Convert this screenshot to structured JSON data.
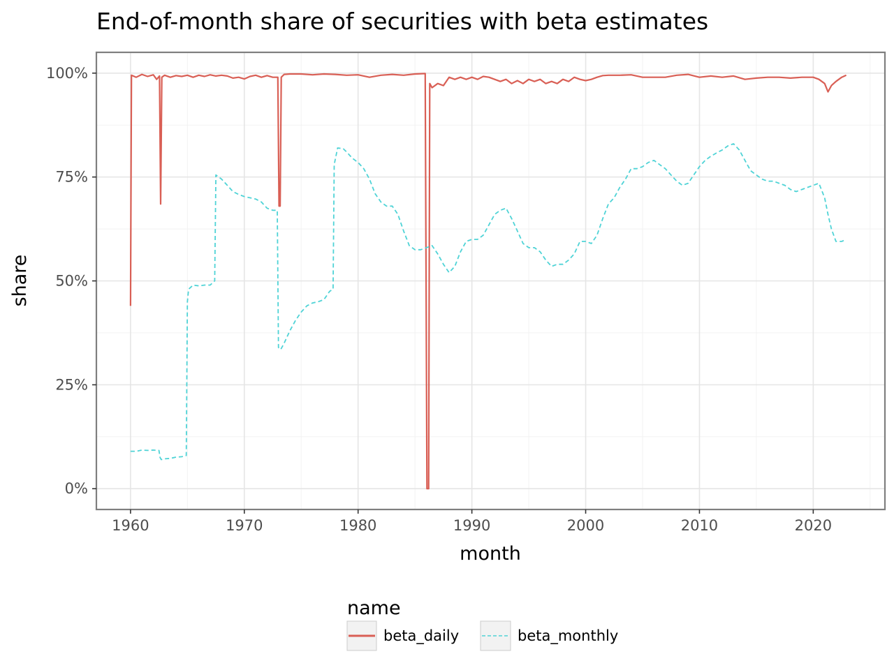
{
  "chart_data": {
    "type": "line",
    "title": "End-of-month share of securities with beta estimates",
    "xlabel": "month",
    "ylabel": "share",
    "xlim": [
      1957.0,
      2026.3
    ],
    "ylim": [
      -0.05,
      1.05
    ],
    "x_ticks": [
      1960,
      1970,
      1980,
      1990,
      2000,
      2010,
      2020
    ],
    "x_tick_labels": [
      "1960",
      "1970",
      "1980",
      "1990",
      "2000",
      "2010",
      "2020"
    ],
    "y_ticks": [
      0,
      0.25,
      0.5,
      0.75,
      1.0
    ],
    "y_tick_labels": [
      "0%",
      "25%",
      "50%",
      "75%",
      "100%"
    ],
    "grid": true,
    "legend": {
      "title": "name",
      "position": "bottom"
    },
    "series": [
      {
        "name": "beta_daily",
        "color": "#d95f55",
        "dash": "solid",
        "points": [
          [
            1960.0,
            0.44
          ],
          [
            1960.08,
            0.995
          ],
          [
            1960.5,
            0.99
          ],
          [
            1961.0,
            0.997
          ],
          [
            1961.5,
            0.992
          ],
          [
            1962.0,
            0.996
          ],
          [
            1962.3,
            0.985
          ],
          [
            1962.55,
            0.993
          ],
          [
            1962.65,
            0.685
          ],
          [
            1962.75,
            0.99
          ],
          [
            1963.0,
            0.995
          ],
          [
            1963.5,
            0.99
          ],
          [
            1964.0,
            0.994
          ],
          [
            1964.5,
            0.992
          ],
          [
            1965.0,
            0.995
          ],
          [
            1965.5,
            0.99
          ],
          [
            1966.0,
            0.995
          ],
          [
            1966.5,
            0.992
          ],
          [
            1967.0,
            0.996
          ],
          [
            1967.5,
            0.993
          ],
          [
            1968.0,
            0.995
          ],
          [
            1968.5,
            0.993
          ],
          [
            1969.0,
            0.988
          ],
          [
            1969.5,
            0.99
          ],
          [
            1970.0,
            0.986
          ],
          [
            1970.5,
            0.992
          ],
          [
            1971.0,
            0.995
          ],
          [
            1971.5,
            0.99
          ],
          [
            1972.0,
            0.994
          ],
          [
            1972.5,
            0.99
          ],
          [
            1972.95,
            0.99
          ],
          [
            1973.05,
            0.68
          ],
          [
            1973.15,
            0.68
          ],
          [
            1973.25,
            0.99
          ],
          [
            1973.5,
            0.997
          ],
          [
            1974.0,
            0.998
          ],
          [
            1975.0,
            0.998
          ],
          [
            1976.0,
            0.996
          ],
          [
            1977.0,
            0.998
          ],
          [
            1978.0,
            0.997
          ],
          [
            1979.0,
            0.995
          ],
          [
            1980.0,
            0.996
          ],
          [
            1981.0,
            0.99
          ],
          [
            1982.0,
            0.995
          ],
          [
            1983.0,
            0.997
          ],
          [
            1984.0,
            0.995
          ],
          [
            1985.0,
            0.998
          ],
          [
            1985.9,
            0.999
          ],
          [
            1986.05,
            0.0
          ],
          [
            1986.2,
            0.0
          ],
          [
            1986.3,
            0.975
          ],
          [
            1986.5,
            0.965
          ],
          [
            1987.0,
            0.975
          ],
          [
            1987.5,
            0.97
          ],
          [
            1988.0,
            0.99
          ],
          [
            1988.5,
            0.985
          ],
          [
            1989.0,
            0.99
          ],
          [
            1989.5,
            0.985
          ],
          [
            1990.0,
            0.99
          ],
          [
            1990.5,
            0.985
          ],
          [
            1991.0,
            0.992
          ],
          [
            1991.5,
            0.99
          ],
          [
            1992.0,
            0.985
          ],
          [
            1992.5,
            0.98
          ],
          [
            1993.0,
            0.985
          ],
          [
            1993.5,
            0.975
          ],
          [
            1994.0,
            0.982
          ],
          [
            1994.5,
            0.975
          ],
          [
            1995.0,
            0.985
          ],
          [
            1995.5,
            0.98
          ],
          [
            1996.0,
            0.985
          ],
          [
            1996.5,
            0.975
          ],
          [
            1997.0,
            0.98
          ],
          [
            1997.5,
            0.975
          ],
          [
            1998.0,
            0.985
          ],
          [
            1998.5,
            0.98
          ],
          [
            1999.0,
            0.99
          ],
          [
            1999.5,
            0.985
          ],
          [
            2000.0,
            0.982
          ],
          [
            2000.5,
            0.985
          ],
          [
            2001.0,
            0.99
          ],
          [
            2001.5,
            0.994
          ],
          [
            2002.0,
            0.995
          ],
          [
            2003.0,
            0.995
          ],
          [
            2004.0,
            0.996
          ],
          [
            2005.0,
            0.99
          ],
          [
            2006.0,
            0.99
          ],
          [
            2007.0,
            0.99
          ],
          [
            2008.0,
            0.995
          ],
          [
            2009.0,
            0.997
          ],
          [
            2010.0,
            0.99
          ],
          [
            2011.0,
            0.993
          ],
          [
            2012.0,
            0.99
          ],
          [
            2013.0,
            0.993
          ],
          [
            2014.0,
            0.985
          ],
          [
            2015.0,
            0.988
          ],
          [
            2016.0,
            0.99
          ],
          [
            2017.0,
            0.99
          ],
          [
            2018.0,
            0.988
          ],
          [
            2019.0,
            0.99
          ],
          [
            2020.0,
            0.99
          ],
          [
            2020.5,
            0.985
          ],
          [
            2021.0,
            0.975
          ],
          [
            2021.3,
            0.955
          ],
          [
            2021.6,
            0.97
          ],
          [
            2022.0,
            0.98
          ],
          [
            2022.5,
            0.99
          ],
          [
            2022.9,
            0.995
          ]
        ]
      },
      {
        "name": "beta_monthly",
        "color": "#4fd3d6",
        "dash": "dashed",
        "points": [
          [
            1960.0,
            0.09
          ],
          [
            1960.5,
            0.09
          ],
          [
            1961.0,
            0.093
          ],
          [
            1961.5,
            0.092
          ],
          [
            1962.0,
            0.093
          ],
          [
            1962.5,
            0.092
          ],
          [
            1962.6,
            0.075
          ],
          [
            1962.7,
            0.07
          ],
          [
            1963.0,
            0.072
          ],
          [
            1963.5,
            0.073
          ],
          [
            1964.0,
            0.076
          ],
          [
            1964.5,
            0.077
          ],
          [
            1964.9,
            0.08
          ],
          [
            1965.0,
            0.45
          ],
          [
            1965.1,
            0.48
          ],
          [
            1965.5,
            0.49
          ],
          [
            1966.0,
            0.488
          ],
          [
            1966.5,
            0.49
          ],
          [
            1967.0,
            0.49
          ],
          [
            1967.4,
            0.5
          ],
          [
            1967.5,
            0.755
          ],
          [
            1968.0,
            0.745
          ],
          [
            1968.5,
            0.73
          ],
          [
            1969.0,
            0.715
          ],
          [
            1969.5,
            0.708
          ],
          [
            1970.0,
            0.703
          ],
          [
            1970.5,
            0.7
          ],
          [
            1971.0,
            0.697
          ],
          [
            1971.5,
            0.69
          ],
          [
            1972.0,
            0.675
          ],
          [
            1972.5,
            0.67
          ],
          [
            1972.9,
            0.67
          ],
          [
            1973.0,
            0.34
          ],
          [
            1973.2,
            0.335
          ],
          [
            1973.5,
            0.35
          ],
          [
            1974.0,
            0.38
          ],
          [
            1974.5,
            0.405
          ],
          [
            1975.0,
            0.425
          ],
          [
            1975.5,
            0.44
          ],
          [
            1976.0,
            0.447
          ],
          [
            1976.5,
            0.45
          ],
          [
            1977.0,
            0.455
          ],
          [
            1977.5,
            0.475
          ],
          [
            1977.8,
            0.48
          ],
          [
            1977.9,
            0.78
          ],
          [
            1978.2,
            0.82
          ],
          [
            1978.7,
            0.818
          ],
          [
            1979.0,
            0.81
          ],
          [
            1979.5,
            0.795
          ],
          [
            1980.0,
            0.785
          ],
          [
            1980.5,
            0.77
          ],
          [
            1981.0,
            0.745
          ],
          [
            1981.5,
            0.71
          ],
          [
            1982.0,
            0.69
          ],
          [
            1982.5,
            0.68
          ],
          [
            1983.0,
            0.68
          ],
          [
            1983.5,
            0.66
          ],
          [
            1984.0,
            0.62
          ],
          [
            1984.5,
            0.585
          ],
          [
            1985.0,
            0.575
          ],
          [
            1985.5,
            0.575
          ],
          [
            1986.0,
            0.58
          ],
          [
            1986.5,
            0.585
          ],
          [
            1987.0,
            0.565
          ],
          [
            1987.5,
            0.54
          ],
          [
            1988.0,
            0.52
          ],
          [
            1988.5,
            0.535
          ],
          [
            1989.0,
            0.57
          ],
          [
            1989.5,
            0.595
          ],
          [
            1990.0,
            0.6
          ],
          [
            1990.5,
            0.6
          ],
          [
            1991.0,
            0.61
          ],
          [
            1991.5,
            0.635
          ],
          [
            1992.0,
            0.66
          ],
          [
            1992.5,
            0.67
          ],
          [
            1993.0,
            0.675
          ],
          [
            1993.5,
            0.65
          ],
          [
            1994.0,
            0.62
          ],
          [
            1994.5,
            0.59
          ],
          [
            1995.0,
            0.58
          ],
          [
            1995.5,
            0.58
          ],
          [
            1996.0,
            0.57
          ],
          [
            1996.5,
            0.55
          ],
          [
            1997.0,
            0.535
          ],
          [
            1997.5,
            0.54
          ],
          [
            1998.0,
            0.54
          ],
          [
            1998.5,
            0.55
          ],
          [
            1999.0,
            0.565
          ],
          [
            1999.5,
            0.595
          ],
          [
            2000.0,
            0.595
          ],
          [
            2000.5,
            0.59
          ],
          [
            2001.0,
            0.61
          ],
          [
            2001.5,
            0.65
          ],
          [
            2002.0,
            0.685
          ],
          [
            2002.5,
            0.7
          ],
          [
            2003.0,
            0.725
          ],
          [
            2003.5,
            0.745
          ],
          [
            2004.0,
            0.77
          ],
          [
            2004.5,
            0.77
          ],
          [
            2005.0,
            0.775
          ],
          [
            2005.5,
            0.785
          ],
          [
            2006.0,
            0.79
          ],
          [
            2006.5,
            0.78
          ],
          [
            2007.0,
            0.77
          ],
          [
            2007.5,
            0.755
          ],
          [
            2008.0,
            0.74
          ],
          [
            2008.5,
            0.73
          ],
          [
            2009.0,
            0.735
          ],
          [
            2009.5,
            0.755
          ],
          [
            2010.0,
            0.775
          ],
          [
            2010.5,
            0.79
          ],
          [
            2011.0,
            0.8
          ],
          [
            2011.5,
            0.808
          ],
          [
            2012.0,
            0.815
          ],
          [
            2012.5,
            0.825
          ],
          [
            2013.0,
            0.83
          ],
          [
            2013.5,
            0.815
          ],
          [
            2014.0,
            0.79
          ],
          [
            2014.5,
            0.765
          ],
          [
            2015.0,
            0.755
          ],
          [
            2015.5,
            0.745
          ],
          [
            2016.0,
            0.74
          ],
          [
            2016.5,
            0.74
          ],
          [
            2017.0,
            0.735
          ],
          [
            2017.5,
            0.73
          ],
          [
            2018.0,
            0.72
          ],
          [
            2018.5,
            0.715
          ],
          [
            2019.0,
            0.72
          ],
          [
            2019.5,
            0.725
          ],
          [
            2020.0,
            0.73
          ],
          [
            2020.5,
            0.735
          ],
          [
            2021.0,
            0.7
          ],
          [
            2021.3,
            0.66
          ],
          [
            2021.6,
            0.625
          ],
          [
            2022.0,
            0.595
          ],
          [
            2022.5,
            0.595
          ],
          [
            2022.9,
            0.6
          ]
        ]
      }
    ]
  }
}
